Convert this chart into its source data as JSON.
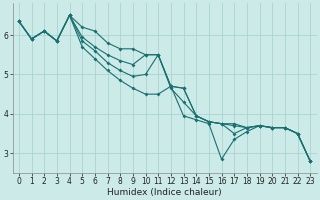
{
  "xlabel": "Humidex (Indice chaleur)",
  "bg_color": "#cceae8",
  "grid_color": "#aad4d0",
  "line_color": "#1a7070",
  "xlim": [
    -0.5,
    23.5
  ],
  "ylim": [
    2.5,
    6.8
  ],
  "yticks": [
    3,
    4,
    5,
    6
  ],
  "xticks": [
    0,
    1,
    2,
    3,
    4,
    5,
    6,
    7,
    8,
    9,
    10,
    11,
    12,
    13,
    14,
    15,
    16,
    17,
    18,
    19,
    20,
    21,
    22,
    23
  ],
  "series": [
    [
      6.35,
      5.9,
      6.1,
      5.85,
      6.5,
      5.95,
      5.7,
      5.5,
      5.35,
      5.25,
      5.5,
      5.5,
      4.7,
      4.65,
      3.95,
      3.8,
      3.75,
      3.7,
      3.65,
      3.7,
      3.65,
      3.65,
      3.5,
      2.8
    ],
    [
      6.35,
      5.9,
      6.1,
      5.85,
      6.5,
      6.2,
      6.1,
      5.8,
      5.65,
      5.65,
      5.5,
      5.5,
      4.7,
      4.65,
      3.95,
      3.8,
      3.75,
      3.75,
      3.65,
      3.7,
      3.65,
      3.65,
      3.5,
      2.8
    ],
    [
      6.35,
      5.9,
      6.1,
      5.85,
      6.5,
      5.7,
      5.4,
      5.1,
      4.85,
      4.65,
      4.5,
      4.5,
      4.7,
      3.95,
      3.85,
      3.75,
      2.85,
      3.35,
      3.55,
      3.7,
      3.65,
      3.65,
      3.5,
      2.8
    ],
    [
      6.35,
      5.9,
      6.1,
      5.85,
      6.5,
      5.85,
      5.6,
      5.3,
      5.1,
      4.95,
      5.0,
      5.5,
      4.65,
      4.3,
      3.95,
      3.8,
      3.75,
      3.5,
      3.65,
      3.7,
      3.65,
      3.65,
      3.5,
      2.8
    ]
  ],
  "tick_fontsize": 5.5,
  "xlabel_fontsize": 6.5,
  "marker_size": 2.0
}
